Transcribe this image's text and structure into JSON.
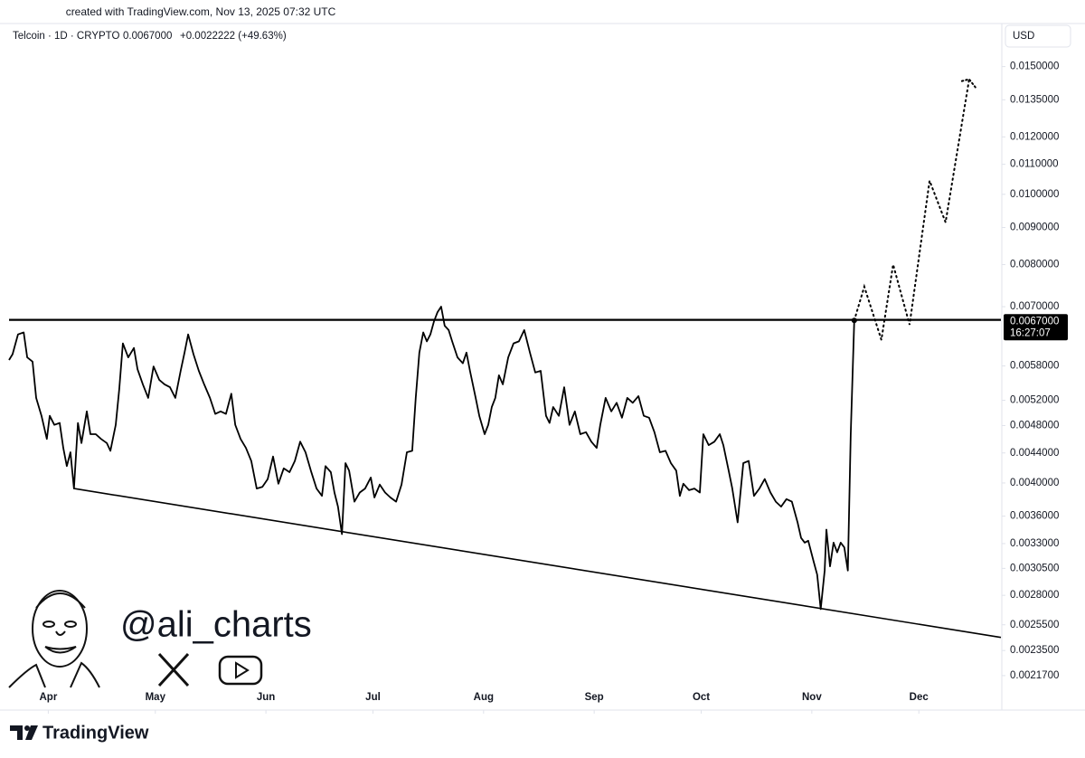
{
  "header": {
    "created": "created with TradingView.com, Nov 13, 2025 07:32 UTC"
  },
  "chart_data": {
    "type": "line",
    "symbol": "Telcoin · 1D · CRYPTO",
    "last_price_label": "0.0067000",
    "change_label": "+0.0022222 (+49.63%)",
    "currency": "USD",
    "countdown": "16:27:07",
    "watermark": "@ali_charts",
    "brand": "TradingView",
    "log_scale": true,
    "grid": false,
    "color": "#000000",
    "xlim": [
      0,
      278
    ],
    "ylim": [
      0.00209,
      0.0171
    ],
    "xticks": [
      {
        "value": 11,
        "label": "Apr"
      },
      {
        "value": 41,
        "label": "May"
      },
      {
        "value": 72,
        "label": "Jun"
      },
      {
        "value": 102,
        "label": "Jul"
      },
      {
        "value": 133,
        "label": "Aug"
      },
      {
        "value": 164,
        "label": "Sep"
      },
      {
        "value": 194,
        "label": "Oct"
      },
      {
        "value": 225,
        "label": "Nov"
      },
      {
        "value": 255,
        "label": "Dec"
      }
    ],
    "yticks": [
      {
        "value": 0.015,
        "label": "0.0150000"
      },
      {
        "value": 0.0135,
        "label": "0.0135000"
      },
      {
        "value": 0.012,
        "label": "0.0120000"
      },
      {
        "value": 0.011,
        "label": "0.0110000"
      },
      {
        "value": 0.01,
        "label": "0.0100000"
      },
      {
        "value": 0.009,
        "label": "0.0090000"
      },
      {
        "value": 0.008,
        "label": "0.0080000"
      },
      {
        "value": 0.007,
        "label": "0.0070000"
      },
      {
        "value": 0.0058,
        "label": "0.0058000"
      },
      {
        "value": 0.0052,
        "label": "0.0052000"
      },
      {
        "value": 0.0048,
        "label": "0.0048000"
      },
      {
        "value": 0.0044,
        "label": "0.0044000"
      },
      {
        "value": 0.004,
        "label": "0.0040000"
      },
      {
        "value": 0.0036,
        "label": "0.0036000"
      },
      {
        "value": 0.0033,
        "label": "0.0033000"
      },
      {
        "value": 0.00305,
        "label": "0.0030500"
      },
      {
        "value": 0.0028,
        "label": "0.0028000"
      },
      {
        "value": 0.00255,
        "label": "0.0025500"
      },
      {
        "value": 0.00235,
        "label": "0.0023500"
      },
      {
        "value": 0.00217,
        "label": "0.0021700"
      }
    ],
    "x": [
      0,
      1.0,
      2.5,
      4.1,
      5.1,
      6.6,
      7.6,
      9.1,
      10.6,
      11.4,
      12.7,
      14.2,
      15.2,
      16.2,
      17.2,
      18.2,
      19.3,
      20.3,
      21.8,
      22.8,
      24.3,
      25.8,
      27.4,
      28.4,
      29.9,
      30.9,
      31.9,
      33.4,
      35.0,
      36.0,
      37.5,
      39.0,
      40.5,
      42.1,
      43.6,
      45.1,
      46.6,
      48.1,
      49.2,
      50.2,
      51.7,
      53.2,
      54.7,
      56.3,
      57.8,
      59.3,
      60.8,
      62.3,
      63.4,
      64.9,
      66.4,
      67.9,
      69.4,
      71.0,
      72.5,
      74.0,
      75.5,
      77.0,
      78.6,
      80.1,
      81.6,
      83.1,
      84.6,
      86.2,
      87.7,
      88.7,
      90.2,
      91.2,
      92.2,
      93.3,
      94.3,
      95.3,
      96.8,
      98.3,
      99.8,
      101.4,
      102.4,
      103.9,
      105.4,
      106.9,
      108.5,
      110.0,
      111.5,
      113.0,
      114.0,
      115.0,
      116.1,
      117.1,
      118.1,
      119.1,
      120.1,
      121.1,
      122.1,
      123.2,
      124.2,
      125.7,
      127.2,
      128.2,
      129.2,
      130.8,
      131.8,
      133.3,
      134.3,
      135.3,
      136.3,
      137.3,
      138.4,
      139.9,
      141.4,
      142.9,
      144.4,
      146.0,
      147.5,
      149.0,
      150.5,
      151.5,
      152.5,
      154.1,
      155.6,
      157.1,
      158.6,
      160.1,
      161.7,
      163.2,
      164.7,
      165.7,
      167.2,
      168.8,
      170.3,
      171.8,
      173.3,
      174.8,
      176.4,
      177.9,
      179.4,
      180.9,
      182.4,
      184.0,
      185.5,
      187.0,
      188.0,
      189.0,
      190.6,
      192.1,
      193.6,
      194.6,
      196.1,
      197.7,
      199.2,
      200.2,
      201.7,
      202.7,
      204.2,
      205.8,
      207.3,
      208.8,
      210.3,
      211.8,
      213.4,
      214.9,
      216.4,
      217.9,
      219.4,
      221.0,
      222.0,
      223.0,
      224.0,
      225.5,
      226.5,
      227.5,
      228.6,
      229.1,
      230.1,
      231.1,
      232.1,
      233.1,
      234.1,
      235.1,
      235.9,
      236.9
    ],
    "values": [
      0.00591,
      0.00602,
      0.00641,
      0.00645,
      0.00596,
      0.00588,
      0.00524,
      0.00495,
      0.0046,
      0.00495,
      0.00481,
      0.00484,
      0.00447,
      0.00422,
      0.00441,
      0.00393,
      0.00484,
      0.00454,
      0.00502,
      0.00467,
      0.00467,
      0.0046,
      0.00454,
      0.00443,
      0.00481,
      0.00539,
      0.00623,
      0.00596,
      0.00614,
      0.00574,
      0.00547,
      0.00524,
      0.00579,
      0.00555,
      0.00547,
      0.00542,
      0.00524,
      0.00571,
      0.00605,
      0.00641,
      0.00602,
      0.00571,
      0.00547,
      0.00524,
      0.00498,
      0.00502,
      0.00498,
      0.00531,
      0.00481,
      0.0046,
      0.00447,
      0.00429,
      0.00393,
      0.00395,
      0.00405,
      0.00435,
      0.00399,
      0.00419,
      0.00414,
      0.00429,
      0.00456,
      0.00441,
      0.00416,
      0.00393,
      0.00384,
      0.00422,
      0.00414,
      0.00388,
      0.00371,
      0.0034,
      0.00426,
      0.00416,
      0.00377,
      0.00388,
      0.00393,
      0.00407,
      0.00382,
      0.00398,
      0.00388,
      0.00382,
      0.00377,
      0.00398,
      0.00441,
      0.00443,
      0.00524,
      0.00605,
      0.00645,
      0.00627,
      0.00641,
      0.00668,
      0.00688,
      0.007,
      0.00659,
      0.0065,
      0.00627,
      0.00596,
      0.00585,
      0.00605,
      0.00571,
      0.00524,
      0.00495,
      0.00467,
      0.00481,
      0.00509,
      0.00524,
      0.00563,
      0.00547,
      0.00596,
      0.00623,
      0.00627,
      0.0065,
      0.00605,
      0.00568,
      0.00571,
      0.00495,
      0.00484,
      0.00509,
      0.00495,
      0.00542,
      0.00481,
      0.00502,
      0.00467,
      0.0047,
      0.00456,
      0.00447,
      0.00481,
      0.00524,
      0.00502,
      0.00516,
      0.00492,
      0.00524,
      0.00516,
      0.00527,
      0.00495,
      0.00492,
      0.0047,
      0.00441,
      0.00443,
      0.00426,
      0.00416,
      0.00384,
      0.00399,
      0.00391,
      0.00393,
      0.00388,
      0.00467,
      0.00451,
      0.00456,
      0.00467,
      0.00451,
      0.00416,
      0.00393,
      0.00353,
      0.00426,
      0.00429,
      0.00384,
      0.00393,
      0.00405,
      0.00388,
      0.00377,
      0.00371,
      0.0038,
      0.00377,
      0.00353,
      0.00336,
      0.00331,
      0.00333,
      0.00312,
      0.00299,
      0.00268,
      0.00303,
      0.00345,
      0.00307,
      0.00331,
      0.00321,
      0.00331,
      0.00326,
      0.00303,
      0.00467,
      0.0067
    ],
    "trendlines": [
      {
        "x": [
          0,
          278
        ],
        "values": [
          0.00672,
          0.00672
        ]
      },
      {
        "x": [
          18.2,
          278
        ],
        "values": [
          0.00393,
          0.00245
        ]
      }
    ],
    "projection": {
      "x": [
        236.9,
        239.7,
        244.5,
        247.8,
        252.4,
        258.0,
        262.5,
        269.1
      ],
      "values": [
        0.0067,
        0.00746,
        0.0063,
        0.008,
        0.00661,
        0.01044,
        0.00915,
        0.01441
      ]
    }
  }
}
